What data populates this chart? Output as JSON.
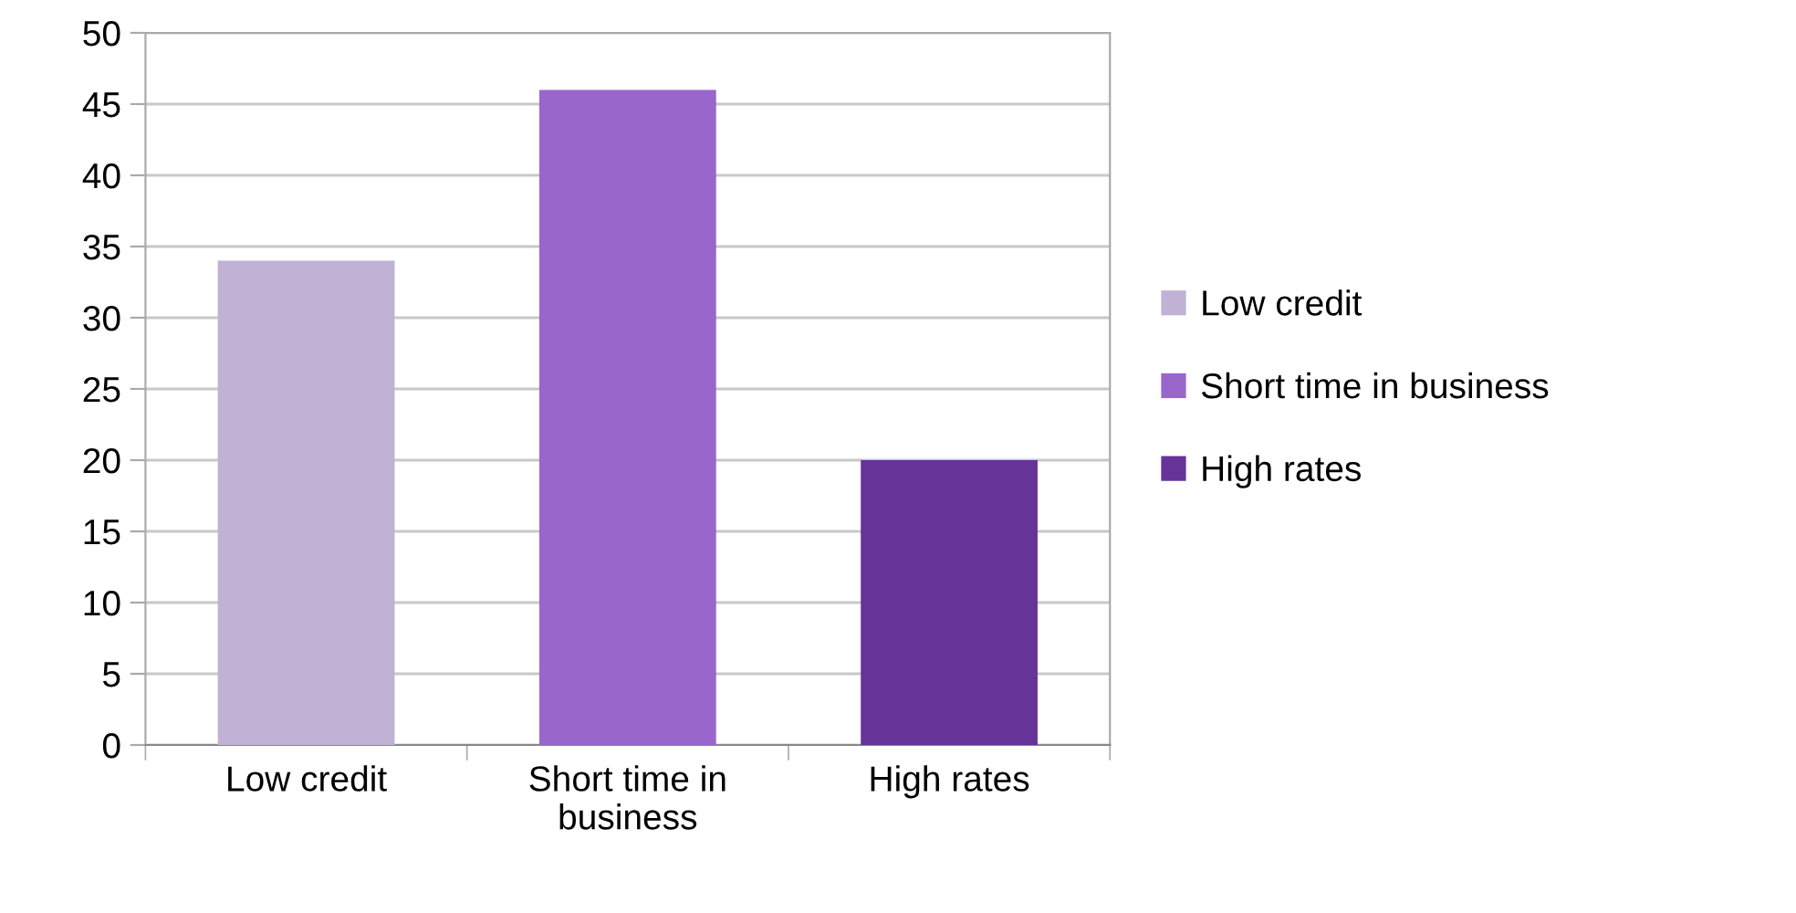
{
  "chart_data": {
    "type": "bar",
    "categories": [
      "Low credit",
      "Short time in business",
      "High rates"
    ],
    "series": [
      {
        "name": "Low credit",
        "color": "#c0b1d5",
        "values": [
          34,
          null,
          null
        ]
      },
      {
        "name": "Short time in business",
        "color": "#9966cc",
        "values": [
          null,
          46,
          null
        ]
      },
      {
        "name": "High rates",
        "color": "#663399",
        "values": [
          null,
          null,
          20
        ]
      }
    ],
    "ylim": [
      0,
      50
    ],
    "yticks": [
      0,
      5,
      10,
      15,
      20,
      25,
      30,
      35,
      40,
      45,
      50
    ],
    "grid": "y",
    "legend": "right"
  }
}
